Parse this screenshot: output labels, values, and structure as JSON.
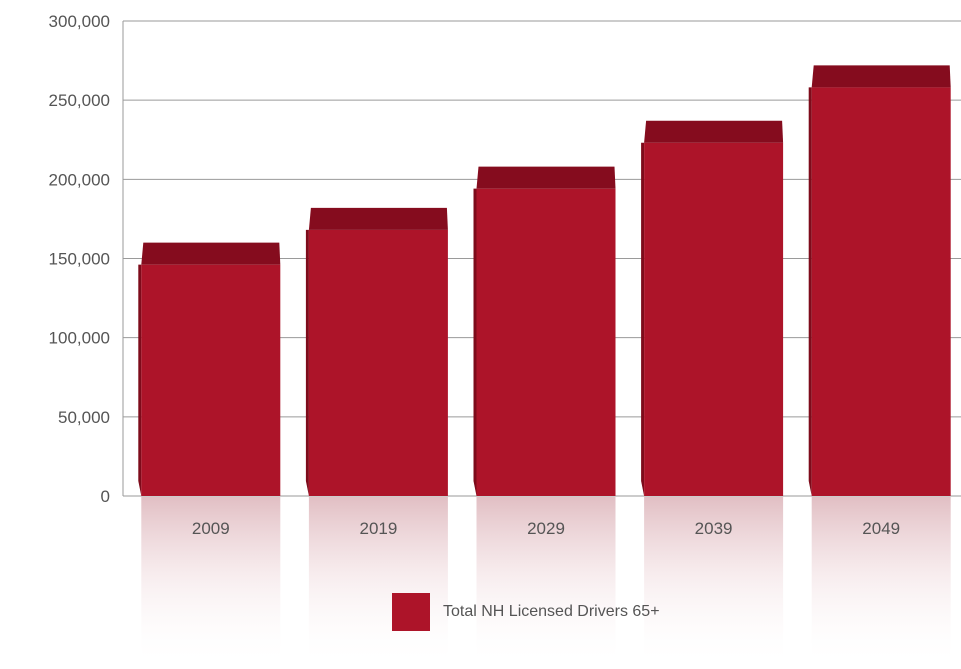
{
  "chart_data": {
    "type": "bar",
    "categories": [
      "2009",
      "2019",
      "2029",
      "2039",
      "2049"
    ],
    "series": [
      {
        "name": "Total NH Licensed Drivers 65+",
        "values": [
          160000,
          182000,
          208000,
          237000,
          272000
        ]
      }
    ],
    "ylim": [
      0,
      300000
    ],
    "yticks": [
      "0",
      "50,000",
      "100,000",
      "150,000",
      "200,000",
      "250,000",
      "300,000"
    ],
    "grid": true,
    "legend_position": "bottom-center",
    "colors": {
      "bar_front": "#ad1429",
      "bar_top": "#850c1e",
      "grid": "#9a9a9a"
    }
  },
  "legend": {
    "label": "Total NH Licensed Drivers 65+"
  }
}
